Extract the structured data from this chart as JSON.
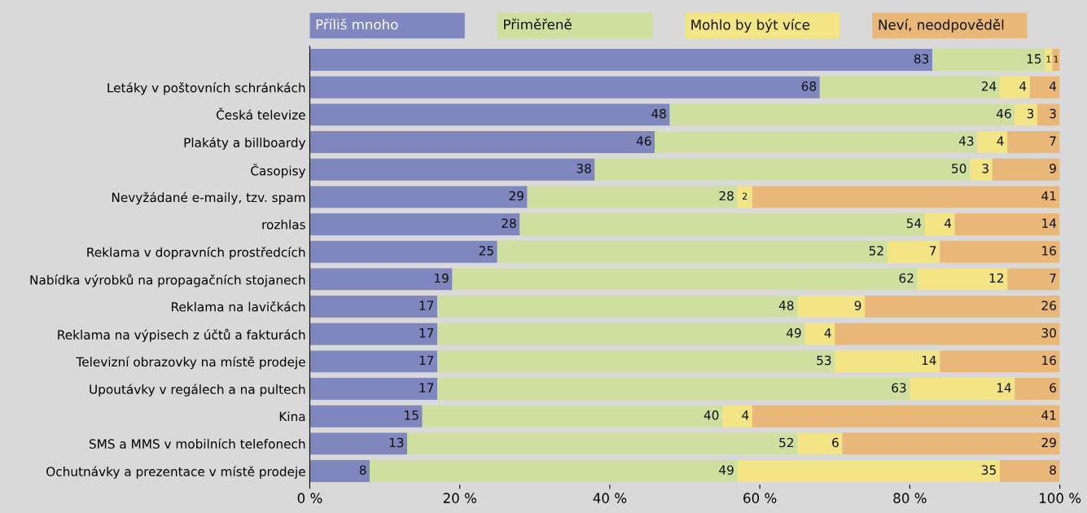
{
  "chart_data": {
    "type": "bar",
    "orientation": "horizontal",
    "stacked": true,
    "data_labels": true,
    "legend": "top",
    "grid": false,
    "categories": [
      null,
      "Letáky v poštovních schránkách",
      "Česká televize",
      "Plakáty a billboardy",
      "Časopisy",
      "Nevyžádané e-maily, tzv. spam",
      "rozhlas",
      "Reklama v dopravních prostředcích",
      "Nabídka výrobků na propagačních stojanech",
      "Reklama na lavičkách",
      "Reklama na výpisech z účtů a fakturách",
      "Televizní obrazovky na místě prodeje",
      "Upoutávky v regálech a na pultech",
      "Kina",
      "SMS a MMS v mobilních telefonech",
      "Ochutnávky a prezentace v místě prodeje"
    ],
    "series": [
      {
        "name": "Příliš mnoho",
        "color": "#7f87be",
        "values": [
          83,
          68,
          48,
          46,
          38,
          29,
          28,
          25,
          19,
          17,
          17,
          17,
          17,
          15,
          13,
          8
        ]
      },
      {
        "name": "Přiměřeně",
        "color": "#cfdfa0",
        "values": [
          15,
          24,
          46,
          43,
          50,
          28,
          54,
          52,
          62,
          48,
          49,
          53,
          63,
          40,
          52,
          49
        ]
      },
      {
        "name": "Mohlo by být více",
        "color": "#f3e486",
        "values": [
          1,
          4,
          3,
          4,
          3,
          2,
          4,
          7,
          12,
          9,
          4,
          14,
          14,
          4,
          6,
          35
        ]
      },
      {
        "name": "Neví, neodpověděl",
        "color": "#e9b878",
        "values": [
          1,
          4,
          3,
          7,
          9,
          41,
          14,
          16,
          7,
          26,
          30,
          16,
          6,
          41,
          29,
          8
        ]
      }
    ],
    "xlim": [
      0,
      100
    ],
    "xticks": [
      {
        "value": 0,
        "label": "0 %"
      },
      {
        "value": 20,
        "label": "20 %"
      },
      {
        "value": 40,
        "label": "40 %"
      },
      {
        "value": 60,
        "label": "60 %"
      },
      {
        "value": 80,
        "label": "80 %"
      },
      {
        "value": 100,
        "label": "100 %"
      }
    ]
  }
}
